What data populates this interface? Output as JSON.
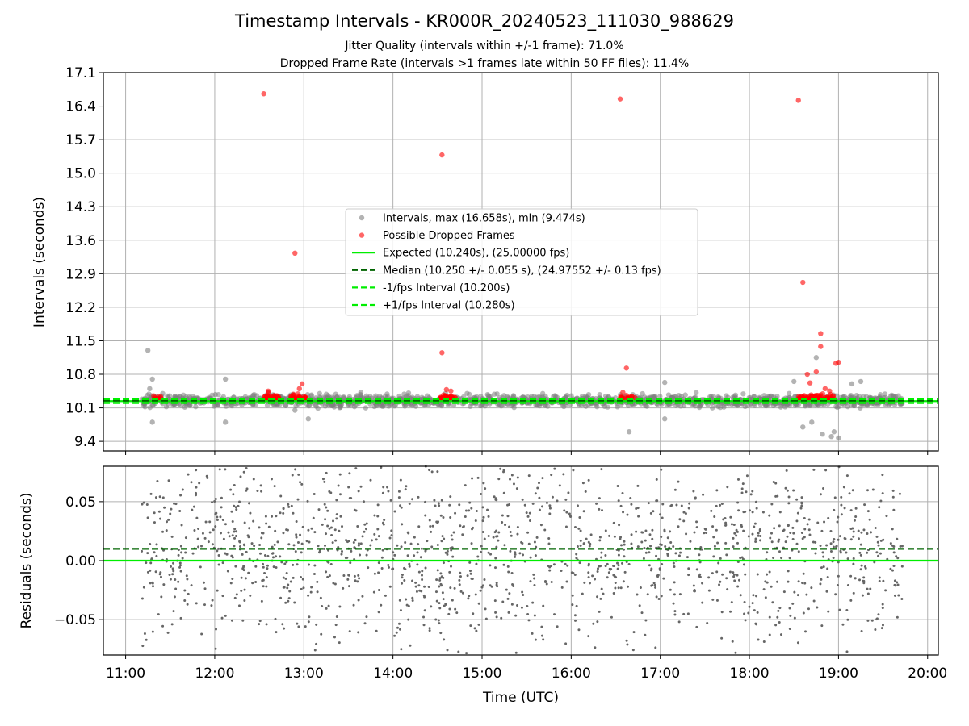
{
  "figure": {
    "title": "Timestamp Intervals - KR000R_20240523_111030_988629",
    "subtitle_jitter": "Jitter Quality (intervals within +/-1 frame): 71.0%",
    "subtitle_dropped": "Dropped Frame Rate (intervals >1 frames late within 50 FF files): 11.4%"
  },
  "chart_data": [
    {
      "type": "scatter",
      "xlabel": "",
      "ylabel": "Intervals (seconds)",
      "x_unit": "UTC hours",
      "xlim": [
        10.75,
        20.12
      ],
      "ylim": [
        9.2,
        17.1
      ],
      "yticks": [
        "9.4",
        "10.1",
        "10.8",
        "11.5",
        "12.2",
        "12.9",
        "13.6",
        "14.3",
        "15.0",
        "15.7",
        "16.4",
        "17.1"
      ],
      "xticks": [
        "11:00",
        "12:00",
        "13:00",
        "14:00",
        "15:00",
        "16:00",
        "17:00",
        "18:00",
        "19:00",
        "20:00"
      ],
      "grid": true,
      "legend_position": "center",
      "legend": [
        "Intervals, max (16.658s), min (9.474s)",
        "Possible Dropped Frames",
        "Expected (10.240s), (25.00000 fps)",
        "Median (10.250 +/- 0.055 s), (24.97552 +/- 0.13 fps)",
        "-1/fps Interval (10.200s)",
        "+1/fps Interval (10.280s)"
      ],
      "lines": [
        {
          "name": "Expected (10.240s), (25.00000 fps)",
          "y": 10.24,
          "color": "#00ee00",
          "style": "solid"
        },
        {
          "name": "Median (10.250 +/- 0.055 s), (24.97552 +/- 0.13 fps)",
          "y": 10.25,
          "color": "#006400",
          "style": "dashed"
        },
        {
          "name": "-1/fps Interval (10.200s)",
          "y": 10.2,
          "color": "#00ee00",
          "style": "dashed"
        },
        {
          "name": "+1/fps Interval (10.280s)",
          "y": 10.28,
          "color": "#00ee00",
          "style": "dashed"
        }
      ],
      "series": [
        {
          "name": "Intervals, max (16.658s), min (9.474s)",
          "color": "#808080",
          "range": {
            "x_start": 11.18,
            "x_end": 19.72,
            "y_center": 10.25,
            "y_spread": 0.06
          },
          "points": [
            [
              11.25,
              11.3
            ],
            [
              11.27,
              10.5
            ],
            [
              11.3,
              10.7
            ],
            [
              11.3,
              9.8
            ],
            [
              12.12,
              10.7
            ],
            [
              12.12,
              9.8
            ],
            [
              12.9,
              10.05
            ],
            [
              13.05,
              9.87
            ],
            [
              17.05,
              10.63
            ],
            [
              17.05,
              9.87
            ],
            [
              16.65,
              9.6
            ],
            [
              18.5,
              10.65
            ],
            [
              18.75,
              11.15
            ],
            [
              18.82,
              9.55
            ],
            [
              18.92,
              9.5
            ],
            [
              18.95,
              9.6
            ],
            [
              19.0,
              9.47
            ],
            [
              19.15,
              10.6
            ],
            [
              19.25,
              10.65
            ],
            [
              18.6,
              9.7
            ],
            [
              18.7,
              9.8
            ]
          ]
        },
        {
          "name": "Possible Dropped Frames",
          "color": "#ff0000",
          "points": [
            [
              12.55,
              16.658
            ],
            [
              12.9,
              13.33
            ],
            [
              14.55,
              15.38
            ],
            [
              14.55,
              11.25
            ],
            [
              16.55,
              16.55
            ],
            [
              16.62,
              10.93
            ],
            [
              18.55,
              16.52
            ],
            [
              18.6,
              12.72
            ],
            [
              18.8,
              11.65
            ],
            [
              18.8,
              11.38
            ],
            [
              18.97,
              11.03
            ],
            [
              19.0,
              11.05
            ],
            [
              18.65,
              10.8
            ],
            [
              18.75,
              10.85
            ],
            [
              12.98,
              10.6
            ],
            [
              12.95,
              10.5
            ],
            [
              14.6,
              10.48
            ],
            [
              16.58,
              10.42
            ],
            [
              18.85,
              10.5
            ],
            [
              18.68,
              10.62
            ],
            [
              12.6,
              10.45
            ],
            [
              12.6,
              10.42
            ],
            [
              14.65,
              10.45
            ],
            [
              18.9,
              10.45
            ]
          ],
          "clusters": [
            {
              "x_start": 11.3,
              "x_end": 11.4,
              "n": 10
            },
            {
              "x_start": 12.55,
              "x_end": 12.72,
              "n": 40
            },
            {
              "x_start": 12.85,
              "x_end": 13.02,
              "n": 35
            },
            {
              "x_start": 14.52,
              "x_end": 14.7,
              "n": 38
            },
            {
              "x_start": 16.55,
              "x_end": 16.72,
              "n": 20
            },
            {
              "x_start": 18.55,
              "x_end": 18.95,
              "n": 70
            }
          ]
        }
      ]
    },
    {
      "type": "scatter",
      "xlabel": "Time (UTC)",
      "ylabel": "Residuals (seconds)",
      "x_unit": "UTC hours",
      "xlim": [
        10.75,
        20.12
      ],
      "ylim": [
        -0.08,
        0.08
      ],
      "yticks": [
        "−0.05",
        "0.00",
        "0.05"
      ],
      "ytick_values": [
        -0.05,
        0.0,
        0.05
      ],
      "xticks": [
        "11:00",
        "12:00",
        "13:00",
        "14:00",
        "15:00",
        "16:00",
        "17:00",
        "18:00",
        "19:00",
        "20:00"
      ],
      "grid": true,
      "lines": [
        {
          "y": 0.0,
          "color": "#00ee00",
          "style": "solid"
        },
        {
          "y": 0.01,
          "color": "#006400",
          "style": "dashed"
        }
      ],
      "series": [
        {
          "color": "#666666",
          "range": {
            "x_start": 11.18,
            "x_end": 19.72,
            "y_center": 0.01,
            "y_spread": 0.04
          }
        }
      ]
    }
  ]
}
